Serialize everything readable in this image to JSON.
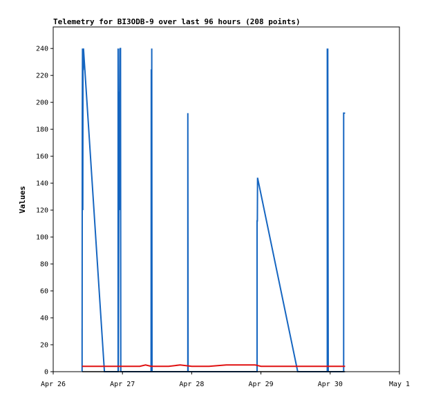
{
  "chart_data": {
    "type": "line",
    "title": "Telemetry for BI3ODB-9 over last 96 hours (208 points)",
    "xlabel": "",
    "ylabel": "Values",
    "ylim": [
      0,
      256
    ],
    "yticks": [
      0,
      20,
      40,
      60,
      80,
      100,
      120,
      140,
      160,
      180,
      200,
      220,
      240
    ],
    "xlim": [
      "2024-04-26 00:00",
      "2024-05-01 00:00"
    ],
    "xticks": [
      {
        "x": "2024-04-26 00:00",
        "label": "Apr 26"
      },
      {
        "x": "2024-04-27 00:00",
        "label": "Apr 27"
      },
      {
        "x": "2024-04-28 00:00",
        "label": "Apr 28"
      },
      {
        "x": "2024-04-29 00:00",
        "label": "Apr 29"
      },
      {
        "x": "2024-04-30 00:00",
        "label": "Apr 30"
      },
      {
        "x": "2024-05-01 00:00",
        "label": "May 1"
      }
    ],
    "grid": false,
    "legend": "none",
    "series": [
      {
        "color": "#1565c0",
        "points": [
          [
            "2024-04-26 10:00",
            0
          ],
          [
            "2024-04-26 10:00",
            32
          ],
          [
            "2024-04-26 10:00",
            0
          ],
          [
            "2024-04-26 10:05",
            192
          ],
          [
            "2024-04-26 10:10",
            240
          ],
          [
            "2024-04-26 10:15",
            120
          ],
          [
            "2024-04-26 10:20",
            240
          ],
          [
            "2024-04-26 10:25",
            224
          ],
          [
            "2024-04-26 10:30",
            240
          ],
          [
            "2024-04-26 17:45",
            0
          ],
          [
            "2024-04-26 22:30",
            0
          ],
          [
            "2024-04-26 22:30",
            240
          ],
          [
            "2024-04-26 22:35",
            0
          ],
          [
            "2024-04-26 22:50",
            208
          ],
          [
            "2024-04-26 23:00",
            200
          ],
          [
            "2024-04-26 23:05",
            240
          ],
          [
            "2024-04-26 23:10",
            120
          ],
          [
            "2024-04-26 23:15",
            240
          ],
          [
            "2024-04-26 23:20",
            240
          ],
          [
            "2024-04-26 23:25",
            0
          ],
          [
            "2024-04-27 09:55",
            0
          ],
          [
            "2024-04-27 10:00",
            224
          ],
          [
            "2024-04-27 10:05",
            224
          ],
          [
            "2024-04-27 10:05",
            0
          ],
          [
            "2024-04-27 10:10",
            240
          ],
          [
            "2024-04-27 10:15",
            0
          ],
          [
            "2024-04-27 22:40",
            0
          ],
          [
            "2024-04-27 22:40",
            192
          ],
          [
            "2024-04-27 22:45",
            0
          ],
          [
            "2024-04-28 22:40",
            0
          ],
          [
            "2024-04-28 22:40",
            112
          ],
          [
            "2024-04-28 22:45",
            112
          ],
          [
            "2024-04-28 22:50",
            144
          ],
          [
            "2024-04-29 12:45",
            0
          ],
          [
            "2024-04-29 23:00",
            0
          ],
          [
            "2024-04-29 23:00",
            240
          ],
          [
            "2024-04-29 23:05",
            0
          ],
          [
            "2024-04-29 23:10",
            240
          ],
          [
            "2024-04-29 23:15",
            88
          ],
          [
            "2024-04-29 23:20",
            0
          ],
          [
            "2024-04-30 04:40",
            0
          ],
          [
            "2024-04-30 04:40",
            192
          ],
          [
            "2024-04-30 05:10",
            192
          ]
        ]
      },
      {
        "color": "#e01010",
        "points": [
          [
            "2024-04-26 10:00",
            4
          ],
          [
            "2024-04-26 16:00",
            4
          ],
          [
            "2024-04-27 00:00",
            4
          ],
          [
            "2024-04-27 06:00",
            4
          ],
          [
            "2024-04-27 08:00",
            5
          ],
          [
            "2024-04-27 10:00",
            4
          ],
          [
            "2024-04-27 16:00",
            4
          ],
          [
            "2024-04-27 20:00",
            5
          ],
          [
            "2024-04-28 00:00",
            4
          ],
          [
            "2024-04-28 06:00",
            4
          ],
          [
            "2024-04-28 12:00",
            5
          ],
          [
            "2024-04-28 22:00",
            5
          ],
          [
            "2024-04-29 00:00",
            4
          ],
          [
            "2024-04-29 12:00",
            4
          ],
          [
            "2024-04-30 00:00",
            4
          ],
          [
            "2024-04-30 05:10",
            4
          ]
        ]
      },
      {
        "color": "#000000",
        "points": [
          [
            "2024-04-26 10:00",
            0
          ],
          [
            "2024-04-30 05:10",
            0
          ]
        ]
      }
    ]
  }
}
